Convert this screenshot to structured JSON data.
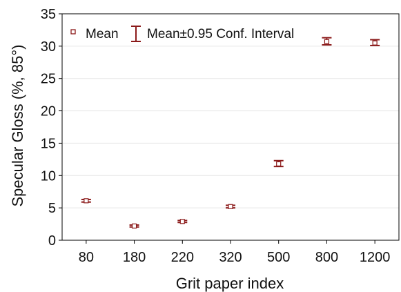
{
  "chart_data": {
    "type": "scatter",
    "xlabel": "Grit paper index",
    "ylabel": "Specular Gloss (%, 85°)",
    "categories": [
      "80",
      "180",
      "220",
      "320",
      "500",
      "800",
      "1200"
    ],
    "series": [
      {
        "name": "Mean",
        "values": [
          6.1,
          2.2,
          2.9,
          5.2,
          11.8,
          30.7,
          30.5
        ],
        "ci_low": [
          5.9,
          2.05,
          2.75,
          5.0,
          11.4,
          30.2,
          30.1
        ],
        "ci_high": [
          6.3,
          2.35,
          3.05,
          5.4,
          12.3,
          31.3,
          31.0
        ]
      }
    ],
    "ylim": [
      0,
      35
    ],
    "yticks": [
      0,
      5,
      10,
      15,
      20,
      25,
      30,
      35
    ],
    "grid": true,
    "legend": {
      "position": "top-left",
      "entries": [
        "Mean",
        "Mean±0.95 Conf. Interval"
      ]
    },
    "colors": {
      "marker": "#8b1a1a",
      "axis": "#000000",
      "grid": "#e6e6e6"
    }
  }
}
